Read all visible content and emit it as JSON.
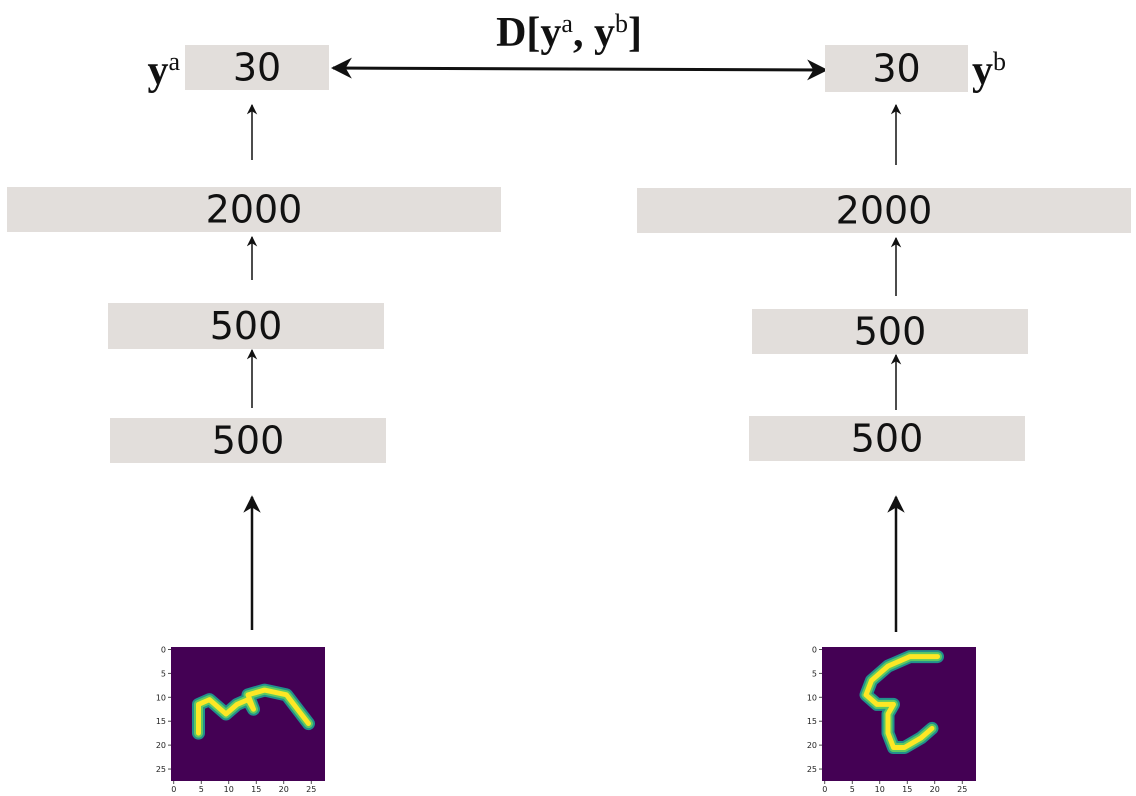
{
  "distance": {
    "parts": [
      {
        "text": "D["
      },
      {
        "text": "y",
        "sup": "a"
      },
      {
        "text": ", "
      },
      {
        "text": "y",
        "sup": "b"
      },
      {
        "text": "]"
      }
    ]
  },
  "columns": [
    {
      "output": {
        "text": "y",
        "sup": "a"
      },
      "layers": [
        "30",
        "2000",
        "500",
        "500"
      ],
      "image": {
        "yticks": [
          "0",
          "5",
          "10",
          "15",
          "20",
          "25"
        ],
        "xticks": [
          "0",
          "5",
          "10",
          "15",
          "20",
          "25"
        ]
      }
    },
    {
      "output": {
        "text": "y",
        "sup": "b"
      },
      "layers": [
        "30",
        "2000",
        "500",
        "500"
      ],
      "image": {
        "yticks": [
          "0",
          "5",
          "10",
          "15",
          "20",
          "25"
        ],
        "xticks": [
          "0",
          "5",
          "10",
          "15",
          "20",
          "25"
        ]
      }
    }
  ]
}
